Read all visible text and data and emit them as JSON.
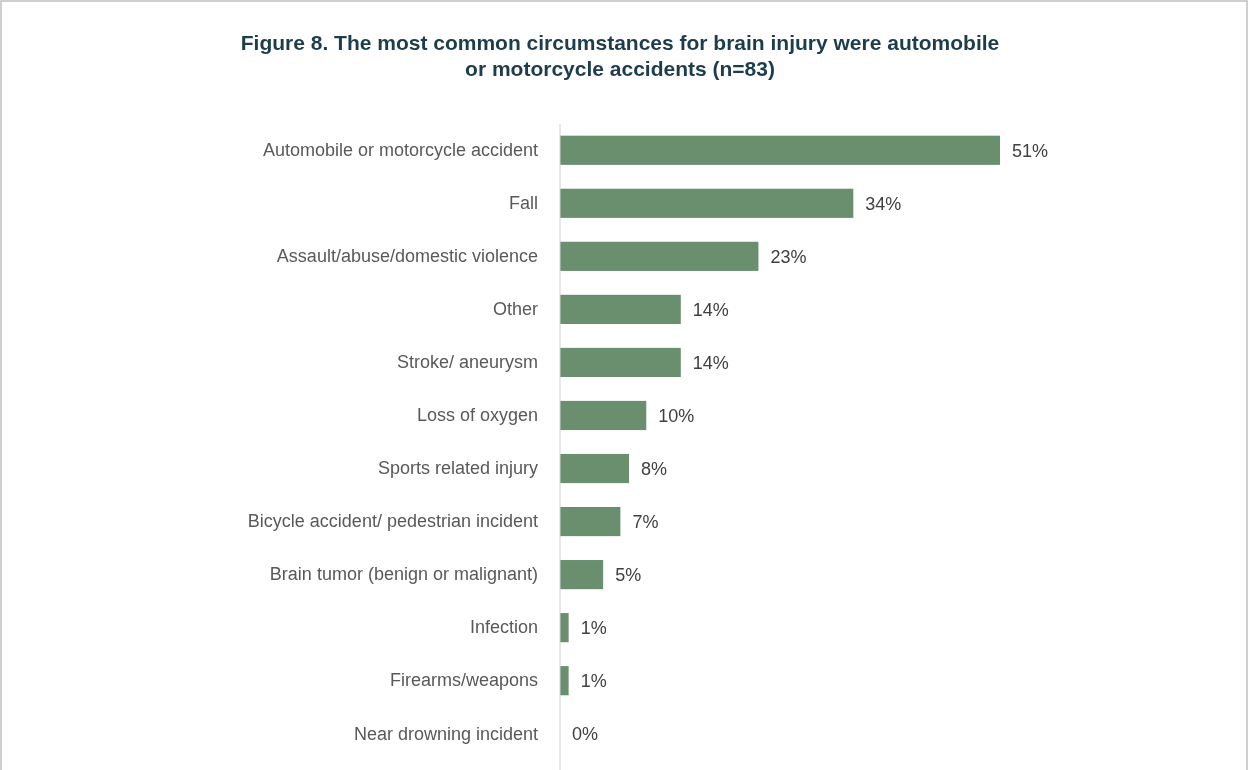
{
  "chart_data": {
    "type": "bar",
    "orientation": "horizontal",
    "title": "Figure 8. The most common circumstances for brain injury were automobile or motorcycle accidents (n=83)",
    "categories": [
      "Automobile or motorcycle accident",
      "Fall",
      "Assault/abuse/domestic violence",
      "Other",
      "Stroke/ aneurysm",
      "Loss of oxygen",
      "Sports related injury",
      "Bicycle accident/ pedestrian incident",
      "Brain tumor (benign or malignant)",
      "Infection",
      "Firearms/weapons",
      "Near drowning incident"
    ],
    "values": [
      51,
      34,
      23,
      14,
      14,
      10,
      8,
      7,
      5,
      1,
      1,
      0
    ],
    "value_labels": [
      "51%",
      "34%",
      "23%",
      "14%",
      "14%",
      "10%",
      "8%",
      "7%",
      "5%",
      "1%",
      "1%",
      "0%"
    ],
    "color": "#6a8f6e"
  }
}
